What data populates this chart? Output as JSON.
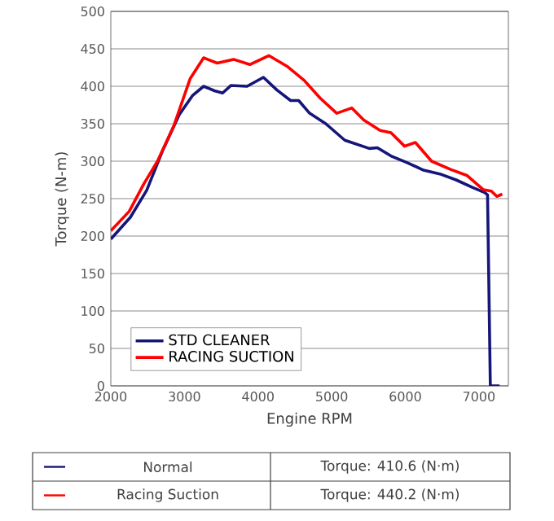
{
  "chart_data": {
    "type": "line",
    "xlabel": "Engine RPM",
    "ylabel": "Torque (N-m)",
    "xlim": [
      2000,
      7400
    ],
    "xticks": [
      2000,
      3000,
      4000,
      5000,
      6000,
      7000
    ],
    "ylim": [
      0,
      500
    ],
    "yticks": [
      0,
      50,
      100,
      150,
      200,
      250,
      300,
      350,
      400,
      450,
      500
    ],
    "grid": "y",
    "legend": "bottom left",
    "series": [
      {
        "name": "STD CLEANER",
        "color": "#15157a",
        "x": [
          2000,
          2265,
          2487,
          2708,
          2929,
          3113,
          3261,
          3408,
          3519,
          3630,
          3851,
          4073,
          4257,
          4442,
          4552,
          4700,
          4920,
          5178,
          5511,
          5621,
          5805,
          6027,
          6248,
          6469,
          6690,
          6910,
          7080,
          7117,
          7155,
          7280
        ],
        "values": [
          196,
          225,
          261,
          315,
          362,
          388,
          400,
          394,
          391,
          401,
          400,
          412,
          395,
          381,
          381,
          364,
          350,
          328,
          317,
          318,
          307,
          298,
          288,
          283,
          275,
          265,
          258,
          255,
          0,
          0
        ]
      },
      {
        "name": "RACING SUCTION",
        "color": "#ff0000",
        "x": [
          2000,
          2250,
          2450,
          2634,
          2855,
          3077,
          3261,
          3445,
          3667,
          3888,
          4146,
          4404,
          4625,
          4846,
          5068,
          5274,
          5437,
          5658,
          5805,
          5990,
          6137,
          6357,
          6615,
          6836,
          7058,
          7169,
          7243,
          7317
        ],
        "values": [
          207,
          233,
          270,
          300,
          347,
          410,
          438,
          431,
          436,
          429,
          441,
          426,
          408,
          384,
          364,
          371,
          355,
          341,
          338,
          320,
          325,
          300,
          289,
          281,
          262,
          260,
          253,
          256
        ]
      }
    ],
    "annotations": [
      "Normal",
      "Torque: 410.6 (N·m)",
      "Racing Suction",
      "Torque: 440.2 (N·m)"
    ]
  }
}
